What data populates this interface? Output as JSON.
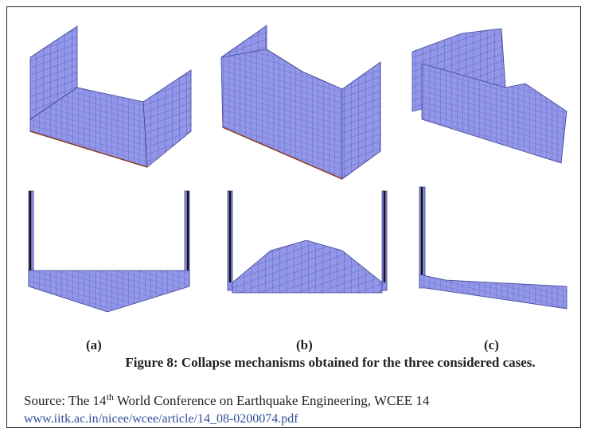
{
  "panels": [
    {
      "label": "(a)"
    },
    {
      "label": "(b)"
    },
    {
      "label": "(c)"
    }
  ],
  "caption": "Figure 8: Collapse mechanisms obtained for the three considered cases.",
  "source": {
    "prefix": "Source: The 14",
    "superscript": "th",
    "rest": "World Conference on Earthquake Engineering, WCEE 14",
    "url": "www.iitk.ac.in/nicee/wcee/article/14_08-0200074.pdf"
  }
}
